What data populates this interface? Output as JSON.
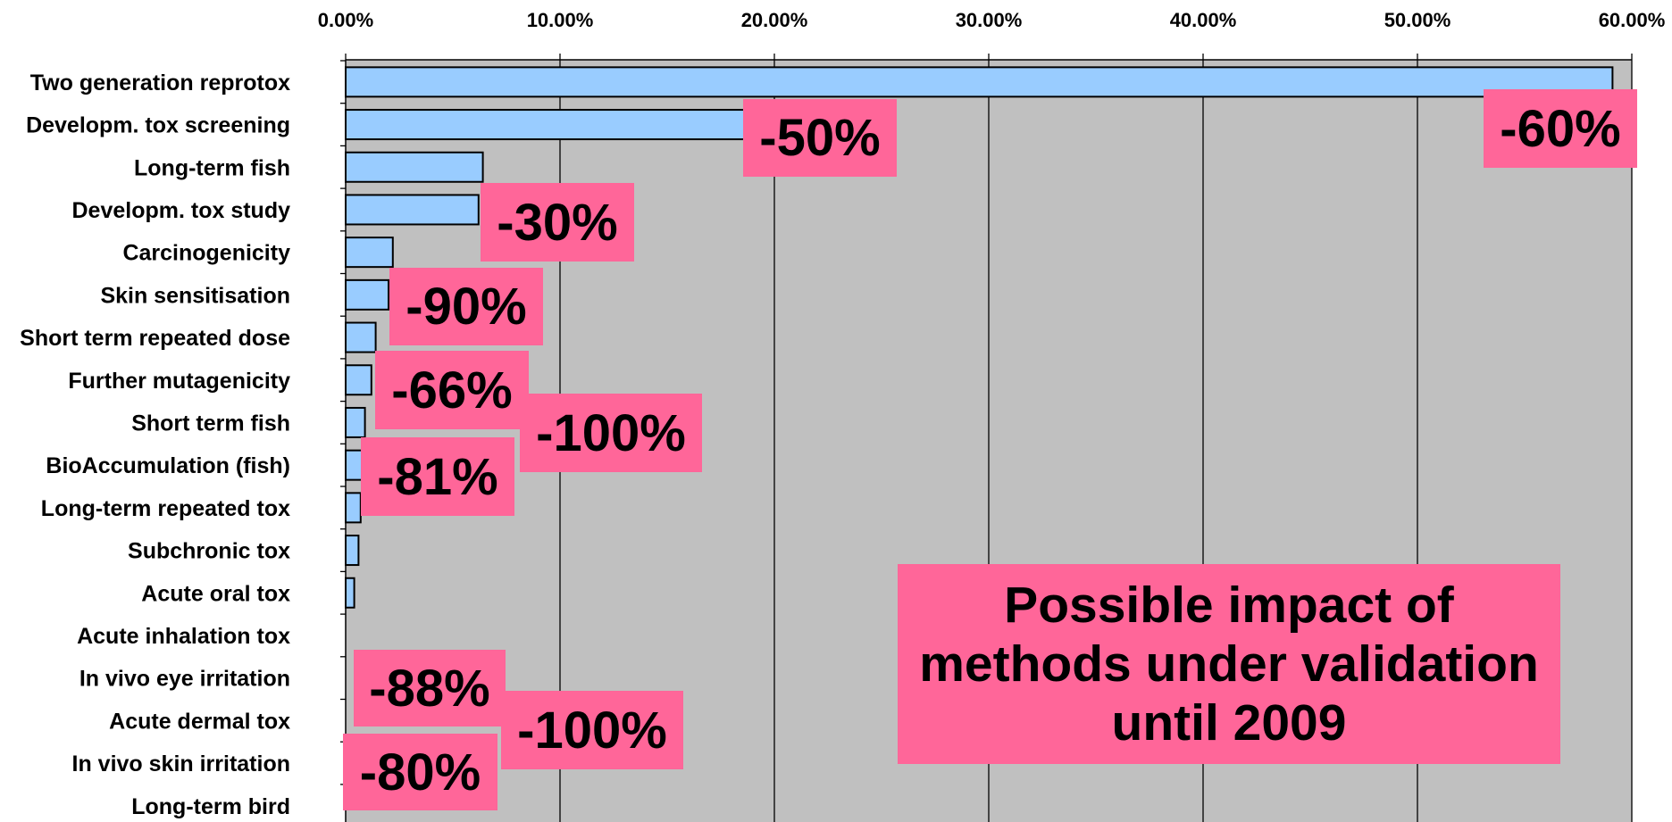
{
  "chart_data": {
    "type": "bar",
    "orientation": "horizontal",
    "x_tick_labels": [
      "0.00%",
      "10.00%",
      "20.00%",
      "30.00%",
      "40.00%",
      "50.00%",
      "60.00%"
    ],
    "xlim": [
      0,
      60
    ],
    "x_axis_position": "top",
    "grid": true,
    "bar_color": "#99ccff",
    "plot_background": "#c0c0c0",
    "callout_color": "#ff6699",
    "categories": [
      "Two generation reprotox",
      "Developm. tox screening",
      "Long-term fish",
      "Developm. tox study",
      "Carcinogenicity",
      "Skin sensitisation",
      "Short term repeated dose",
      "Further mutagenicity",
      "Short term fish",
      "BioAccumulation (fish)",
      "Long-term repeated tox",
      "Subchronic tox",
      "Acute oral tox",
      "Acute inhalation tox",
      "In vivo eye irritation",
      "Acute dermal tox",
      "In vivo skin irritation",
      "Long-term bird"
    ],
    "values": [
      59.1,
      18.6,
      6.4,
      6.2,
      2.2,
      2.0,
      1.4,
      1.2,
      0.9,
      0.8,
      0.7,
      0.6,
      0.4,
      0.0,
      0.0,
      0.0,
      0.0,
      0.0
    ],
    "callouts": [
      "-60%",
      "-50%",
      "-30%",
      "-90%",
      "-66%",
      "-100%",
      "-81%",
      "-88%",
      "-100%",
      "-80%"
    ],
    "annotation": "Possible impact of\nmethods under validation\nuntil 2009"
  }
}
